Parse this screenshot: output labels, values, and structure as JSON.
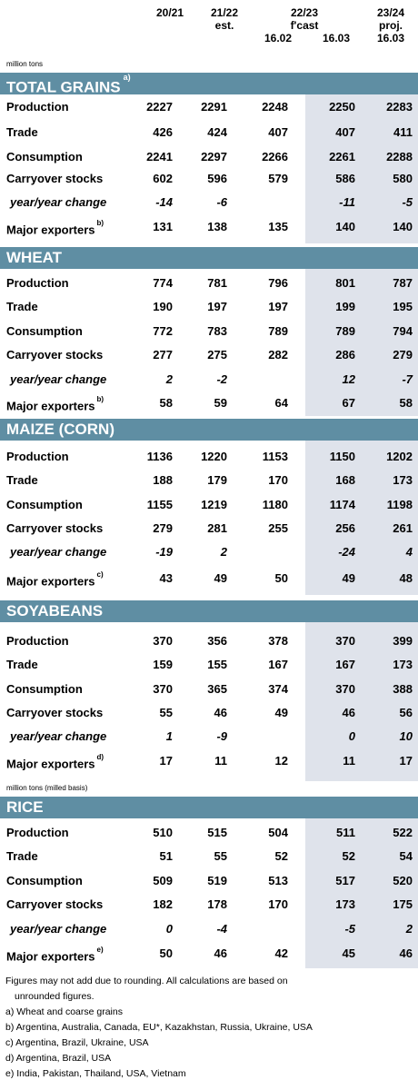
{
  "header": {
    "col1": "20/21",
    "col2_line1": "21/22",
    "col2_line2": "est.",
    "col3_group": "22/23",
    "col3_sub": "f'cast",
    "col3_a": "16.02",
    "col3_b": "16.03",
    "col5_line1": "23/24",
    "col5_line2": "proj.",
    "col5_line3": "16.03",
    "unit": "million tons"
  },
  "sections": [
    {
      "title": "TOTAL GRAINS",
      "note": "a)",
      "rows": [
        {
          "label": "Production",
          "v": [
            "2227",
            "2291",
            "2248",
            "2250",
            "2283"
          ]
        },
        {
          "label": "Trade",
          "v": [
            "426",
            "424",
            "407",
            "407",
            "411"
          ]
        },
        {
          "label": "Consumption",
          "v": [
            "2241",
            "2297",
            "2266",
            "2261",
            "2288"
          ]
        },
        {
          "label": "Carryover stocks",
          "v": [
            "602",
            "596",
            "579",
            "586",
            "580"
          ]
        },
        {
          "label": "year/year change",
          "v": [
            "-14",
            "-6",
            "",
            "-11",
            "-5"
          ]
        },
        {
          "label": "Major exporters",
          "note": "b)",
          "v": [
            "131",
            "138",
            "135",
            "140",
            "140"
          ]
        }
      ]
    },
    {
      "title": "WHEAT",
      "rows": [
        {
          "label": "Production",
          "v": [
            "774",
            "781",
            "796",
            "801",
            "787"
          ]
        },
        {
          "label": "Trade",
          "v": [
            "190",
            "197",
            "197",
            "199",
            "195"
          ]
        },
        {
          "label": "Consumption",
          "v": [
            "772",
            "783",
            "789",
            "789",
            "794"
          ]
        },
        {
          "label": "Carryover stocks",
          "v": [
            "277",
            "275",
            "282",
            "286",
            "279"
          ]
        },
        {
          "label": "year/year change",
          "v": [
            "2",
            "-2",
            "",
            "12",
            "-7"
          ]
        },
        {
          "label": "Major exporters",
          "note": "b)",
          "v": [
            "58",
            "59",
            "64",
            "67",
            "58"
          ]
        }
      ]
    },
    {
      "title": "MAIZE (CORN)",
      "rows": [
        {
          "label": "Production",
          "v": [
            "1136",
            "1220",
            "1153",
            "1150",
            "1202"
          ]
        },
        {
          "label": "Trade",
          "v": [
            "188",
            "179",
            "170",
            "168",
            "173"
          ]
        },
        {
          "label": "Consumption",
          "v": [
            "1155",
            "1219",
            "1180",
            "1174",
            "1198"
          ]
        },
        {
          "label": "Carryover stocks",
          "v": [
            "279",
            "281",
            "255",
            "256",
            "261"
          ]
        },
        {
          "label": "year/year change",
          "v": [
            "-19",
            "2",
            "",
            "-24",
            "4"
          ]
        },
        {
          "label": "Major exporters",
          "note": "c)",
          "v": [
            "43",
            "49",
            "50",
            "49",
            "48"
          ]
        }
      ]
    },
    {
      "title": "SOYABEANS",
      "rows": [
        {
          "label": "Production",
          "v": [
            "370",
            "356",
            "378",
            "370",
            "399"
          ]
        },
        {
          "label": "Trade",
          "v": [
            "159",
            "155",
            "167",
            "167",
            "173"
          ]
        },
        {
          "label": "Consumption",
          "v": [
            "370",
            "365",
            "374",
            "370",
            "388"
          ]
        },
        {
          "label": "Carryover stocks",
          "v": [
            "55",
            "46",
            "49",
            "46",
            "56"
          ]
        },
        {
          "label": "year/year change",
          "v": [
            "1",
            "-9",
            "",
            "0",
            "10"
          ]
        },
        {
          "label": "Major exporters",
          "note": "d)",
          "v": [
            "17",
            "11",
            "12",
            "11",
            "17"
          ]
        }
      ]
    },
    {
      "title": "RICE",
      "unit": "million tons (milled basis)",
      "rows": [
        {
          "label": "Production",
          "v": [
            "510",
            "515",
            "504",
            "511",
            "522"
          ]
        },
        {
          "label": "Trade",
          "v": [
            "51",
            "55",
            "52",
            "52",
            "54"
          ]
        },
        {
          "label": "Consumption",
          "v": [
            "509",
            "519",
            "513",
            "517",
            "520"
          ]
        },
        {
          "label": "Carryover stocks",
          "v": [
            "182",
            "178",
            "170",
            "173",
            "175"
          ]
        },
        {
          "label": "year/year change",
          "v": [
            "0",
            "-4",
            "",
            "-5",
            "2"
          ]
        },
        {
          "label": "Major exporters",
          "note": "e)",
          "v": [
            "50",
            "46",
            "42",
            "45",
            "46"
          ]
        }
      ]
    }
  ],
  "footnotes": {
    "rounding_1": "Figures may not add due to rounding. All calculations are based on",
    "rounding_2": "unrounded figures.",
    "a": "a) Wheat and coarse grains",
    "b": "b) Argentina, Australia, Canada, EU*, Kazakhstan, Russia, Ukraine, USA",
    "c": "c) Argentina, Brazil, Ukraine, USA",
    "d": "d) Argentina, Brazil, USA",
    "e": "e) India, Pakistan, Thailand, USA, Vietnam"
  },
  "colors": {
    "band": "#5f8ea3",
    "shade": "#dfe3eb"
  }
}
